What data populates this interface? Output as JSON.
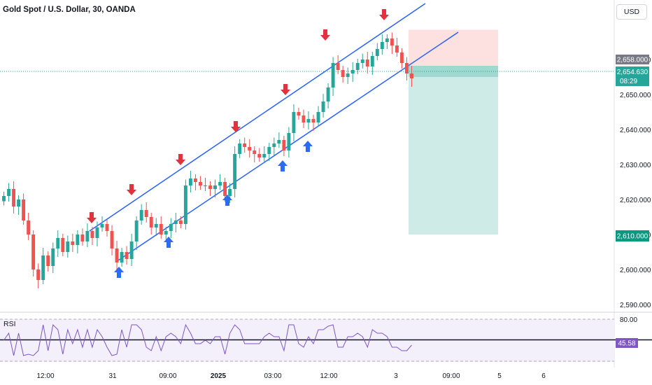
{
  "header": {
    "title": "Gold Spot / U.S. Dollar, 30, OANDA",
    "currency": "USD"
  },
  "price_axis": {
    "ticks": [
      "2,660.000",
      "2,650.000",
      "2,640.000",
      "2,630.000",
      "2,620.000",
      "2,610.000",
      "2,600.000",
      "2,590.000"
    ],
    "current_price": "2,654.630",
    "countdown": "08:29",
    "entry_label": "2,658.000",
    "target_label": "2,610.000"
  },
  "time_axis": {
    "labels": [
      "12:00",
      "31",
      "09:00",
      "2025",
      "03:00",
      "12:00",
      "3",
      "09:00",
      "5",
      "6"
    ]
  },
  "rsi": {
    "label": "RSI",
    "upper": "80.00",
    "value": "45.58"
  },
  "colors": {
    "up": "#26a69a",
    "down": "#ef5350",
    "channel": "#2962ff",
    "arrow_down": "#e0323f",
    "arrow_up": "#2d6bf2",
    "stop_zone": "#fde0e0",
    "target_zone": "#cfebe8",
    "rsi_line": "#7e57c2"
  },
  "chart_data": {
    "type": "candlestick",
    "title": "Gold Spot / U.S. Dollar, 30, OANDA",
    "ylim": [
      2588,
      2677
    ],
    "close_series": [
      2621,
      2623,
      2618,
      2620,
      2614,
      2610,
      2600,
      2597,
      2604,
      2601,
      2606,
      2609,
      2605,
      2608,
      2607,
      2610,
      2608,
      2611,
      2609,
      2612,
      2613,
      2611,
      2606,
      2602,
      2605,
      2603,
      2608,
      2614,
      2617,
      2615,
      2612,
      2613,
      2610,
      2611,
      2613,
      2614,
      2613,
      2624,
      2626,
      2625,
      2624,
      2624,
      2623,
      2624,
      2625,
      2621,
      2623,
      2633,
      2636,
      2635,
      2634,
      2633,
      2632,
      2633,
      2635,
      2636,
      2637,
      2634,
      2639,
      2645,
      2644,
      2642,
      2643,
      2642,
      2645,
      2648,
      2652,
      2659,
      2657,
      2655,
      2656,
      2657,
      2659,
      2660,
      2658,
      2661,
      2663,
      2665,
      2666,
      2664,
      2662,
      2659,
      2656,
      2654.6
    ],
    "annotations": [
      "down markers at swing highs",
      "up markers at swing lows",
      "ascending channel"
    ],
    "position": {
      "type": "short",
      "entry": 2658.0,
      "stop": 2668.5,
      "target": 2610.0
    }
  }
}
